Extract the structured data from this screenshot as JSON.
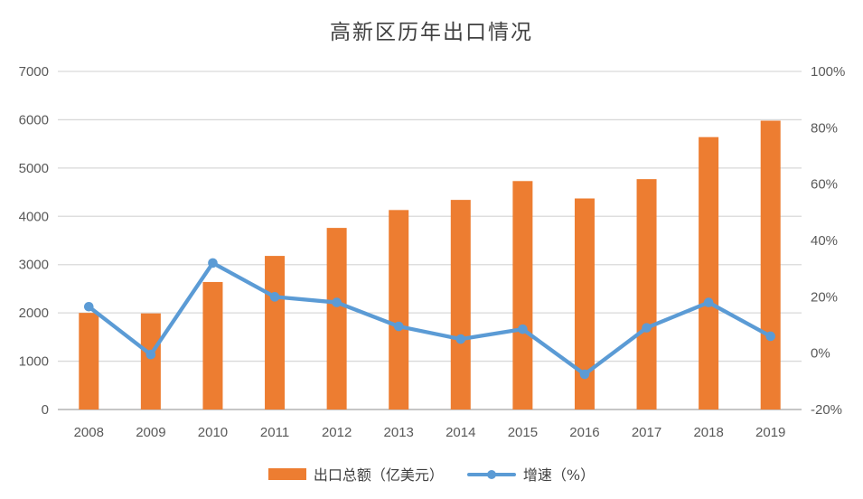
{
  "title": "高新区历年出口情况",
  "legend": {
    "bar_series_label": "出口总额（亿美元）",
    "line_series_label": "增速（%）"
  },
  "colors": {
    "bar": "#ED7D31",
    "line": "#5B9BD5",
    "grid": "#D9D9D9",
    "baseline": "#C6C6C6",
    "axis_text": "#595959",
    "title_text": "#404040"
  },
  "chart_data": {
    "type": "bar",
    "subtype": "bar-line-combo",
    "title": "高新区历年出口情况",
    "categories": [
      "2008",
      "2009",
      "2010",
      "2011",
      "2012",
      "2013",
      "2014",
      "2015",
      "2016",
      "2017",
      "2018",
      "2019"
    ],
    "series": [
      {
        "name": "出口总额（亿美元）",
        "type": "bar",
        "axis": "left",
        "values": [
          2000,
          1990,
          2640,
          3180,
          3760,
          4130,
          4340,
          4730,
          4370,
          4770,
          5640,
          5980
        ]
      },
      {
        "name": "增速（%）",
        "type": "line",
        "axis": "right",
        "values": [
          16.5,
          -0.5,
          32,
          20,
          18,
          9.5,
          5,
          8.5,
          -7.5,
          9,
          18,
          6
        ]
      }
    ],
    "left_axis": {
      "min": 0,
      "max": 7000,
      "step": 1000,
      "tick_labels": [
        "0",
        "1000",
        "2000",
        "3000",
        "4000",
        "5000",
        "6000",
        "7000"
      ]
    },
    "right_axis": {
      "min": -20,
      "max": 100,
      "step": 20,
      "format": "percent",
      "tick_labels": [
        "-20%",
        "0%",
        "20%",
        "40%",
        "60%",
        "80%",
        "100%"
      ]
    },
    "grid": true,
    "legend_position": "bottom"
  }
}
